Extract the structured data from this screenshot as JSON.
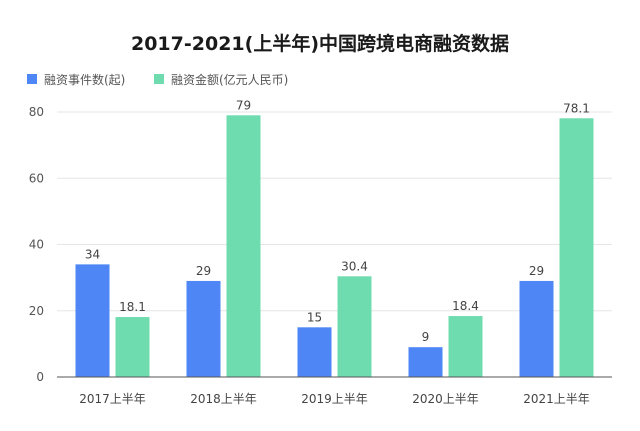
{
  "chart_data": {
    "type": "bar",
    "title": "2017-2021(上半年)中国跨境电商融资数据",
    "categories": [
      "2017上半年",
      "2018上半年",
      "2019上半年",
      "2020上半年",
      "2021上半年"
    ],
    "series": [
      {
        "name": "融资事件数(起)",
        "color": "#4e86f5",
        "values": [
          34,
          29,
          15,
          9,
          29
        ],
        "labels": [
          "34",
          "29",
          "15",
          "9",
          "29"
        ]
      },
      {
        "name": "融资金额(亿元人民币)",
        "color": "#6edcae",
        "values": [
          18.1,
          79,
          30.4,
          18.4,
          78.1
        ],
        "labels": [
          "18.1",
          "79",
          "30.4",
          "18.4",
          "78.1"
        ]
      }
    ],
    "yticks": [
      "0",
      "20",
      "40",
      "60",
      "80"
    ],
    "ylim": [
      0,
      80
    ],
    "grid": true,
    "legend": "top-left",
    "xlabel": "",
    "ylabel": ""
  }
}
